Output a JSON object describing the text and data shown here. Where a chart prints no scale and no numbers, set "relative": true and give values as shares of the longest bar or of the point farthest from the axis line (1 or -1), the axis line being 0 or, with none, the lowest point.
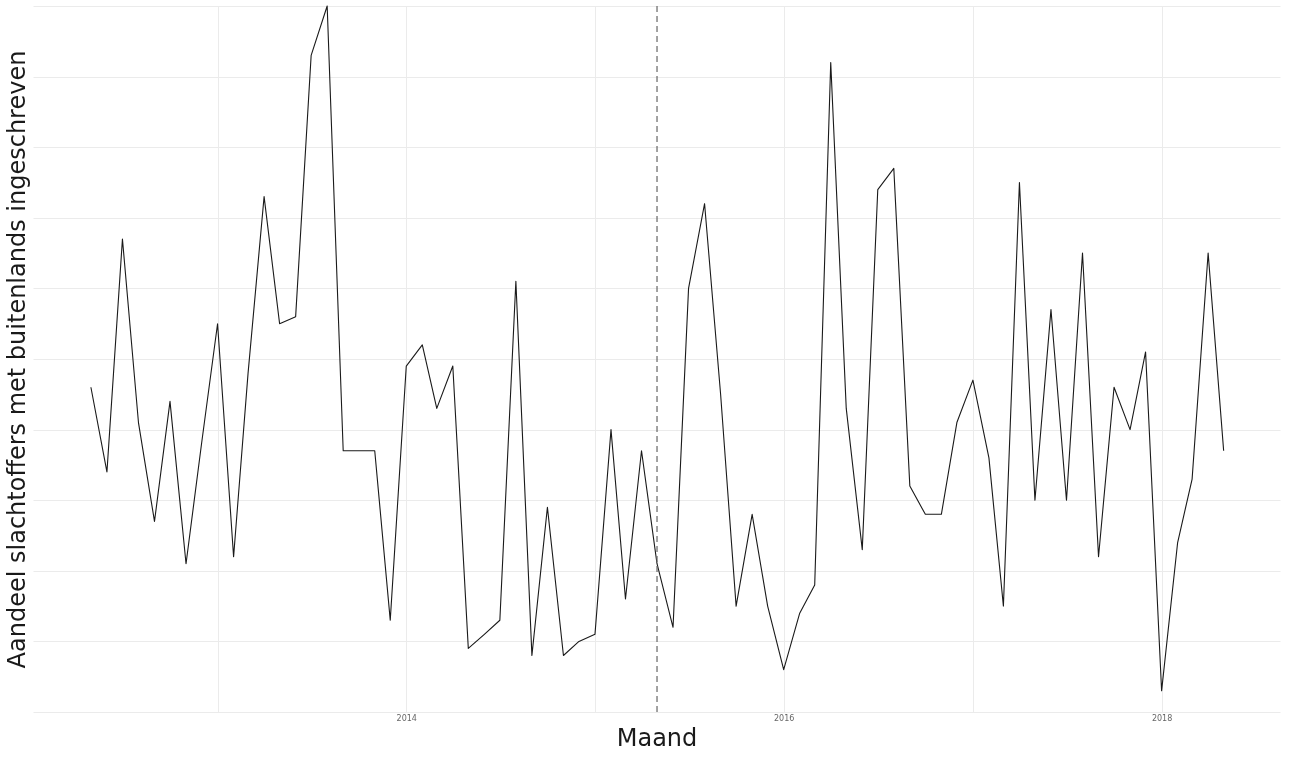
{
  "chart_data": {
    "type": "line",
    "relative": true,
    "xlabel": "Maand",
    "ylabel": "Aandeel slachtoffers met buitenlands ingeschreven",
    "x": [
      "2012-05",
      "2012-06",
      "2012-07",
      "2012-08",
      "2012-09",
      "2012-10",
      "2012-11",
      "2012-12",
      "2013-01",
      "2013-02",
      "2013-03",
      "2013-04",
      "2013-05",
      "2013-06",
      "2013-07",
      "2013-08",
      "2013-09",
      "2013-10",
      "2013-11",
      "2013-12",
      "2014-01",
      "2014-02",
      "2014-03",
      "2014-04",
      "2014-05",
      "2014-06",
      "2014-07",
      "2014-08",
      "2014-09",
      "2014-10",
      "2014-11",
      "2014-12",
      "2015-01",
      "2015-02",
      "2015-03",
      "2015-04",
      "2015-05",
      "2015-06",
      "2015-07",
      "2015-08",
      "2015-09",
      "2015-10",
      "2015-11",
      "2015-12",
      "2016-01",
      "2016-02",
      "2016-03",
      "2016-04",
      "2016-05",
      "2016-06",
      "2016-07",
      "2016-08",
      "2016-09",
      "2016-10",
      "2016-11",
      "2016-12",
      "2017-01",
      "2017-02",
      "2017-03",
      "2017-04",
      "2017-05",
      "2017-06",
      "2017-07",
      "2017-08",
      "2017-09",
      "2017-10",
      "2017-11",
      "2017-12",
      "2018-01",
      "2018-02",
      "2018-03",
      "2018-04",
      "2018-05"
    ],
    "series": [
      {
        "color": "#1a1a1a",
        "values": [
          0.46,
          0.34,
          0.67,
          0.41,
          0.27,
          0.44,
          0.21,
          0.38,
          0.55,
          0.22,
          0.48,
          0.73,
          0.55,
          0.56,
          0.93,
          1.0,
          0.37,
          0.37,
          0.37,
          0.13,
          0.49,
          0.52,
          0.43,
          0.49,
          0.09,
          0.11,
          0.13,
          0.61,
          0.08,
          0.29,
          0.08,
          0.1,
          0.11,
          0.4,
          0.16,
          0.37,
          0.21,
          0.12,
          0.6,
          0.72,
          0.45,
          0.15,
          0.28,
          0.15,
          0.06,
          0.14,
          0.18,
          0.92,
          0.43,
          0.23,
          0.74,
          0.77,
          0.32,
          0.28,
          0.28,
          0.41,
          0.47,
          0.36,
          0.15,
          0.75,
          0.3,
          0.57,
          0.3,
          0.65,
          0.22,
          0.46,
          0.4,
          0.51,
          0.03,
          0.24,
          0.33,
          0.65,
          0.37
        ]
      }
    ],
    "xlim": [
      "2012-01-10",
      "2018-08-18"
    ],
    "xticks": [
      {
        "value": "2013",
        "label": null
      },
      {
        "value": "2014",
        "label": "2014"
      },
      {
        "value": "2015",
        "label": null
      },
      {
        "value": "2016",
        "label": "2016"
      },
      {
        "value": "2017",
        "label": null
      },
      {
        "value": "2018",
        "label": "2018"
      }
    ],
    "ref_lines": [
      {
        "axis": "x",
        "value": "2015-05",
        "label": null,
        "color": "#666666",
        "line_style": "dashed"
      }
    ],
    "grid": true,
    "marker": "none",
    "line_style": "solid"
  }
}
